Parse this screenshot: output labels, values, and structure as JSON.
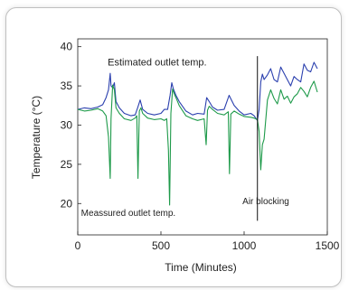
{
  "chart_data": {
    "type": "line",
    "title": "",
    "xlabel": "Time (Minutes)",
    "ylabel": "Temperature (°C)",
    "xlim": [
      0,
      1500
    ],
    "ylim": [
      16,
      41
    ],
    "x_ticks": [
      0,
      500,
      1000,
      1500
    ],
    "y_ticks": [
      20,
      25,
      30,
      35,
      40
    ],
    "grid": false,
    "legend": "none",
    "series": [
      {
        "color": "#2a3fae",
        "x": [
          0,
          40,
          80,
          120,
          150,
          170,
          185,
          195,
          200,
          210,
          220,
          230,
          250,
          280,
          320,
          345,
          360,
          375,
          390,
          420,
          460,
          500,
          520,
          540,
          555,
          565,
          575,
          590,
          610,
          650,
          690,
          720,
          760,
          775,
          790,
          810,
          840,
          880,
          910,
          940,
          970,
          1000,
          1040,
          1060,
          1080,
          1090,
          1100,
          1110,
          1120,
          1140,
          1160,
          1180,
          1200,
          1220,
          1240,
          1260,
          1280,
          1300,
          1320,
          1340,
          1360,
          1380,
          1400,
          1420,
          1440
        ],
        "y": [
          32,
          32.2,
          32.1,
          32.3,
          32.6,
          33.5,
          34.5,
          36.6,
          35,
          34.8,
          35.4,
          33,
          32.2,
          31.5,
          31.2,
          31.3,
          32.2,
          33.2,
          32,
          31.5,
          31.3,
          31.5,
          32,
          32,
          33.8,
          35.4,
          34.6,
          33.8,
          33,
          31.8,
          31.3,
          31.5,
          31.4,
          33.5,
          33,
          32.3,
          31.9,
          32,
          33.8,
          32.5,
          31.8,
          31.3,
          31.5,
          31.2,
          30.6,
          32,
          35.5,
          36.5,
          35.8,
          36.4,
          37.2,
          35.8,
          35.5,
          37.4,
          36.6,
          35.8,
          35,
          36.2,
          35.8,
          35.5,
          37.8,
          37,
          36.8,
          38,
          37.2
        ]
      },
      {
        "color": "#1e9a4a",
        "x": [
          0,
          40,
          80,
          120,
          150,
          170,
          185,
          195,
          200,
          210,
          220,
          230,
          250,
          280,
          320,
          345,
          355,
          362,
          370,
          380,
          390,
          420,
          460,
          500,
          520,
          535,
          545,
          552,
          560,
          570,
          580,
          590,
          610,
          650,
          690,
          720,
          760,
          772,
          780,
          790,
          810,
          840,
          880,
          905,
          912,
          920,
          940,
          970,
          1000,
          1040,
          1060,
          1080,
          1090,
          1100,
          1110,
          1120,
          1140,
          1160,
          1180,
          1200,
          1220,
          1240,
          1260,
          1280,
          1300,
          1320,
          1340,
          1360,
          1380,
          1400,
          1420,
          1440
        ],
        "y": [
          32,
          31.8,
          31.9,
          32.1,
          31.8,
          31.2,
          28.5,
          23.2,
          30.8,
          35.1,
          34.5,
          32.2,
          31.5,
          30.8,
          30.6,
          30.9,
          31.2,
          23.2,
          31.8,
          32.2,
          31.5,
          30.9,
          30.7,
          30.8,
          30.6,
          30.8,
          26.8,
          19.8,
          31.5,
          34.6,
          34,
          33.5,
          32.5,
          31.2,
          30.8,
          30.6,
          30.8,
          27.5,
          31.9,
          32.4,
          32,
          31.5,
          31.3,
          31.7,
          23.8,
          31.4,
          31.8,
          31.4,
          31.1,
          31,
          30.9,
          30.7,
          29.2,
          24.3,
          27.5,
          28.2,
          33.2,
          34.5,
          33.4,
          32.7,
          34.5,
          33.3,
          33.7,
          32.8,
          33.6,
          34,
          34.8,
          34.3,
          33.6,
          34.8,
          35.6,
          34.2
        ]
      }
    ],
    "annotations": [
      {
        "text": "Estimated outlet temp.",
        "x": 180,
        "y": 37.6
      },
      {
        "text": "Meassured outlet temp.",
        "x": 20,
        "y": 18.4
      },
      {
        "text": "Air blocking",
        "x": 990,
        "y": 19.9
      }
    ],
    "vline": {
      "x": 1080,
      "y_from": 17.8,
      "y_to": 38.8
    }
  }
}
